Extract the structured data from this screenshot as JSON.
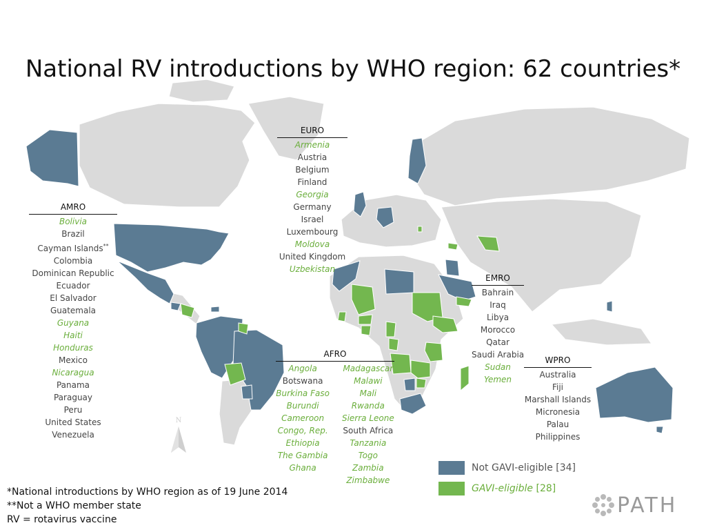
{
  "title": "National RV introductions by WHO region: 62 countries*",
  "colors": {
    "not_gavi": "#5b7b93",
    "gavi": "#73b74f",
    "land": "#dadada",
    "sea": "#ffffff"
  },
  "regions": {
    "amro": {
      "name": "AMRO",
      "countries": [
        {
          "name": "Bolivia",
          "gavi": true
        },
        {
          "name": "Brazil",
          "gavi": false
        },
        {
          "name": "Cayman Islands",
          "gavi": false,
          "note": "**"
        },
        {
          "name": "Colombia",
          "gavi": false
        },
        {
          "name": "Dominican Republic",
          "gavi": false
        },
        {
          "name": "Ecuador",
          "gavi": false
        },
        {
          "name": "El Salvador",
          "gavi": false
        },
        {
          "name": "Guatemala",
          "gavi": false
        },
        {
          "name": "Guyana",
          "gavi": true
        },
        {
          "name": "Haiti",
          "gavi": true
        },
        {
          "name": "Honduras",
          "gavi": true
        },
        {
          "name": "Mexico",
          "gavi": false
        },
        {
          "name": "Nicaragua",
          "gavi": true
        },
        {
          "name": "Panama",
          "gavi": false
        },
        {
          "name": "Paraguay",
          "gavi": false
        },
        {
          "name": "Peru",
          "gavi": false
        },
        {
          "name": "United States",
          "gavi": false
        },
        {
          "name": "Venezuela",
          "gavi": false
        }
      ]
    },
    "euro": {
      "name": "EURO",
      "countries": [
        {
          "name": "Armenia",
          "gavi": true
        },
        {
          "name": "Austria",
          "gavi": false
        },
        {
          "name": "Belgium",
          "gavi": false
        },
        {
          "name": "Finland",
          "gavi": false
        },
        {
          "name": "Georgia",
          "gavi": true
        },
        {
          "name": "Germany",
          "gavi": false
        },
        {
          "name": "Israel",
          "gavi": false
        },
        {
          "name": "Luxembourg",
          "gavi": false
        },
        {
          "name": "Moldova",
          "gavi": true
        },
        {
          "name": "United Kingdom",
          "gavi": false
        },
        {
          "name": "Uzbekistan",
          "gavi": true
        }
      ]
    },
    "emro": {
      "name": "EMRO",
      "countries": [
        {
          "name": "Bahrain",
          "gavi": false
        },
        {
          "name": "Iraq",
          "gavi": false
        },
        {
          "name": "Libya",
          "gavi": false
        },
        {
          "name": "Morocco",
          "gavi": false
        },
        {
          "name": "Qatar",
          "gavi": false
        },
        {
          "name": "Saudi Arabia",
          "gavi": false
        },
        {
          "name": "Sudan",
          "gavi": true
        },
        {
          "name": "Yemen",
          "gavi": true
        }
      ]
    },
    "afro": {
      "name": "AFRO",
      "col1": [
        {
          "name": "Angola",
          "gavi": true
        },
        {
          "name": "Botswana",
          "gavi": false
        },
        {
          "name": "Burkina Faso",
          "gavi": true
        },
        {
          "name": "Burundi",
          "gavi": true
        },
        {
          "name": "Cameroon",
          "gavi": true
        },
        {
          "name": "Congo, Rep.",
          "gavi": true
        },
        {
          "name": "Ethiopia",
          "gavi": true
        },
        {
          "name": "The Gambia",
          "gavi": true
        },
        {
          "name": "Ghana",
          "gavi": true
        }
      ],
      "col2": [
        {
          "name": "Madagascar",
          "gavi": true
        },
        {
          "name": "Malawi",
          "gavi": true
        },
        {
          "name": "Mali",
          "gavi": true
        },
        {
          "name": "Rwanda",
          "gavi": true
        },
        {
          "name": "Sierra Leone",
          "gavi": true
        },
        {
          "name": "South Africa",
          "gavi": false
        },
        {
          "name": "Tanzania",
          "gavi": true
        },
        {
          "name": "Togo",
          "gavi": true
        },
        {
          "name": "Zambia",
          "gavi": true
        },
        {
          "name": "Zimbabwe",
          "gavi": true
        }
      ]
    },
    "wpro": {
      "name": "WPRO",
      "countries": [
        {
          "name": "Australia",
          "gavi": false
        },
        {
          "name": "Fiji",
          "gavi": false
        },
        {
          "name": "Marshall Islands",
          "gavi": false
        },
        {
          "name": "Micronesia",
          "gavi": false
        },
        {
          "name": "Palau",
          "gavi": false
        },
        {
          "name": "Philippines",
          "gavi": false
        }
      ]
    }
  },
  "legend": {
    "not_gavi_label": "Not GAVI-eligible",
    "not_gavi_count": "[34]",
    "gavi_label": "GAVI-eligible",
    "gavi_count": "[28]"
  },
  "footnotes": [
    "*National introductions by WHO region as of 19 June 2014",
    "**Not a WHO member state",
    "RV = rotavirus vaccine"
  ],
  "north_label": "N",
  "logo_text": "PATH"
}
